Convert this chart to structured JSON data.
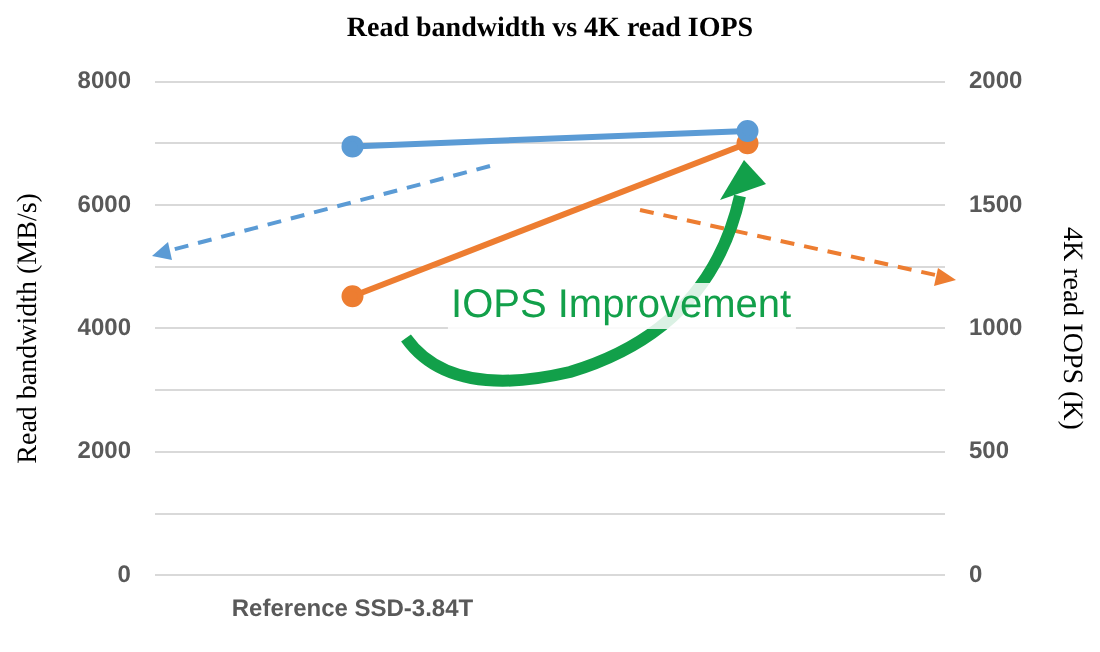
{
  "chart_data": {
    "type": "line",
    "title": "Read bandwidth vs 4K read IOPS",
    "ylabel": "Read bandwidth (MB/s)",
    "y2label": "4K read IOPS (K)",
    "categories": [
      "Reference SSD-3.84T",
      null
    ],
    "series": [
      {
        "color": "#5b9bd5",
        "values": [
          6950,
          7200
        ]
      },
      {
        "color": "#ed7d31",
        "values": [
          1130,
          1750
        ],
        "axis": "y2"
      }
    ],
    "ylim": [
      0,
      8000
    ],
    "yticks": [
      0,
      {
        "value": 1000,
        "label": null
      },
      2000,
      {
        "value": 3000,
        "label": null
      },
      4000,
      {
        "value": 5000,
        "label": null
      },
      6000,
      {
        "value": 7000,
        "label": null
      },
      8000
    ],
    "y2lim": [
      0,
      2000
    ],
    "y2ticks": [
      0,
      500,
      1000,
      1500,
      2000
    ],
    "annotations": [
      "IOPS Improvement"
    ],
    "grid": "y",
    "legend": false,
    "marker": "circle",
    "line_style": "solid"
  }
}
